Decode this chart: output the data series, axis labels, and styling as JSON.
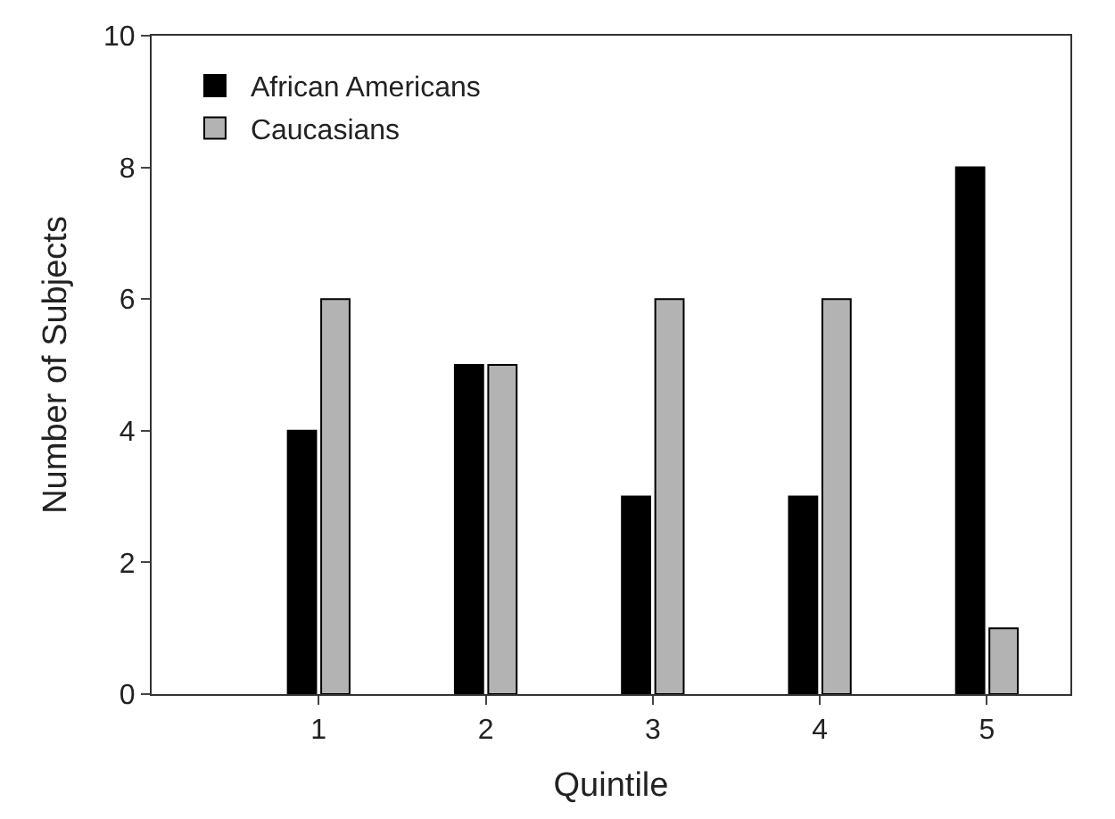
{
  "chart_data": {
    "type": "bar",
    "xlabel": "Quintile",
    "ylabel": "Number of Subjects",
    "x": [
      1,
      2,
      3,
      4,
      5
    ],
    "xlim": [
      0,
      5.5
    ],
    "xticks": [
      1,
      2,
      3,
      4,
      5
    ],
    "ylim": [
      0,
      10
    ],
    "yticks": [
      0,
      2,
      4,
      6,
      8,
      10
    ],
    "series": [
      {
        "name": "African Americans",
        "color": "#000000",
        "values": [
          4,
          5,
          3,
          3,
          8
        ]
      },
      {
        "name": "Caucasians",
        "color": "#b3b3b3",
        "values": [
          6,
          5,
          6,
          6,
          1
        ]
      }
    ],
    "legend": "top left"
  }
}
